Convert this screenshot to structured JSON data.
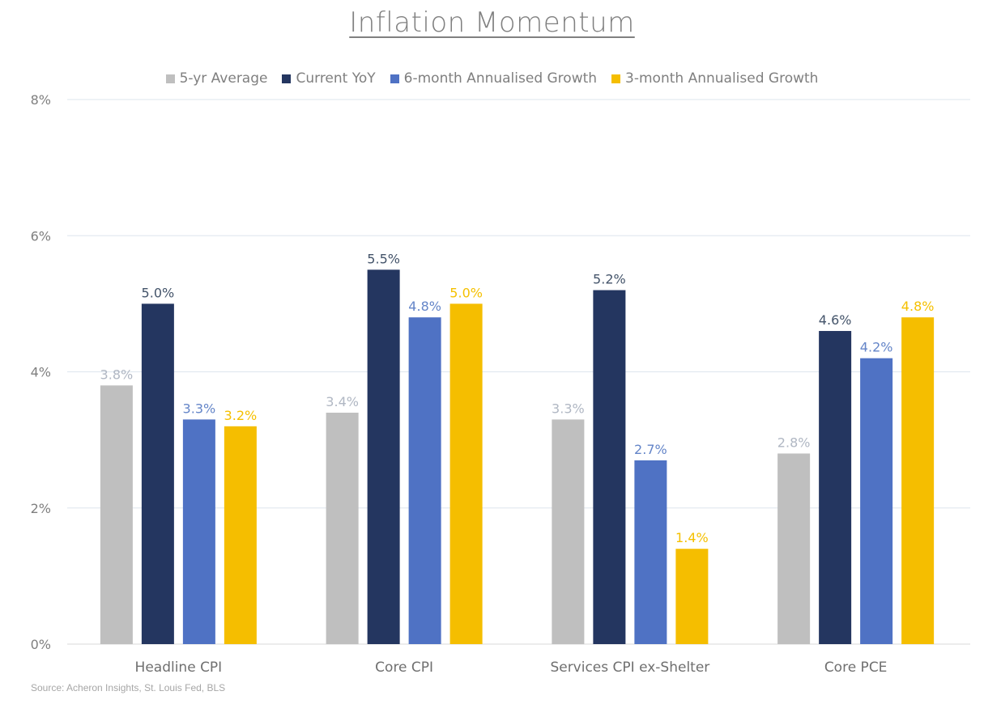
{
  "title": "Inflation Momentum",
  "source": "Source: Acheron Insights, St. Louis Fed, BLS",
  "chart_data": {
    "type": "bar",
    "title": "Inflation Momentum",
    "xlabel": "",
    "ylabel": "",
    "ylim": [
      0,
      8
    ],
    "yticks": [
      "0%",
      "2%",
      "4%",
      "6%",
      "8%"
    ],
    "grid": true,
    "legend_position": "top",
    "categories": [
      "Headline CPI",
      "Core CPI",
      "Services CPI ex-Shelter",
      "Core PCE"
    ],
    "series": [
      {
        "name": "5-yr Average",
        "color": "#bfbfbf",
        "label_color": "#b0b7c3",
        "values": [
          3.8,
          3.4,
          3.3,
          2.8
        ],
        "labels": [
          "3.8%",
          "3.4%",
          "3.3%",
          "2.8%"
        ]
      },
      {
        "name": "Current YoY",
        "color": "#243660",
        "label_color": "#44546a",
        "values": [
          5.0,
          5.5,
          5.2,
          4.6
        ],
        "labels": [
          "5.0%",
          "5.5%",
          "5.2%",
          "4.6%"
        ]
      },
      {
        "name": "6-month Annualised Growth",
        "color": "#4f72c4",
        "label_color": "#6485c8",
        "values": [
          3.3,
          4.8,
          2.7,
          4.2
        ],
        "labels": [
          "3.3%",
          "4.8%",
          "2.7%",
          "4.2%"
        ]
      },
      {
        "name": "3-month Annualised Growth",
        "color": "#f5be00",
        "label_color": "#f5c000",
        "values": [
          3.2,
          5.0,
          1.4,
          4.8
        ],
        "labels": [
          "3.2%",
          "5.0%",
          "1.4%",
          "4.8%"
        ]
      }
    ]
  }
}
